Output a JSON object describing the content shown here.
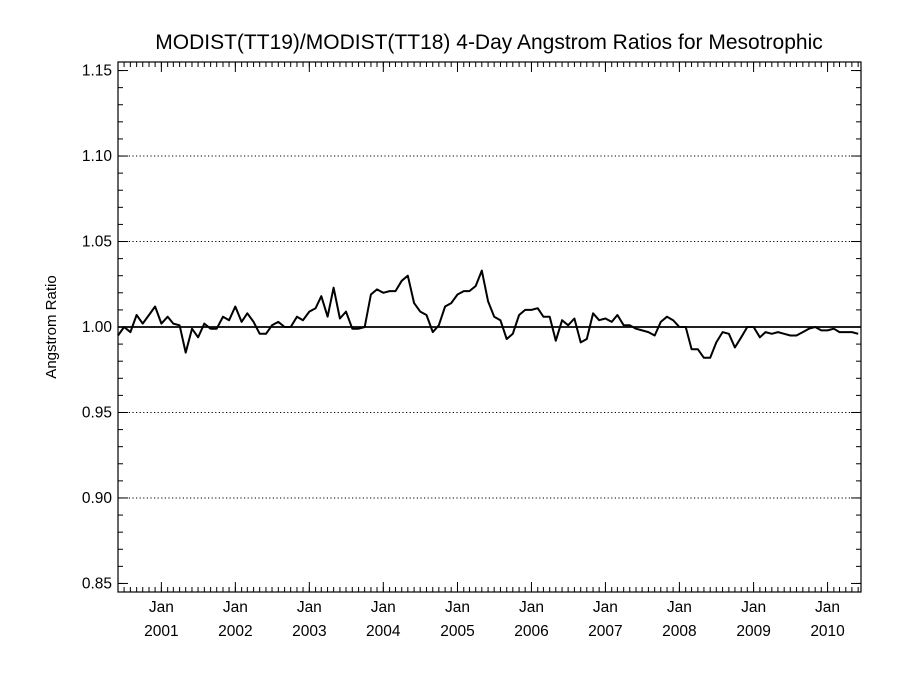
{
  "chart_data": {
    "type": "line",
    "title": "MODIST(TT19)/MODIST(TT18) 4-Day Angstrom Ratios for Mesotrophic",
    "xlabel": "",
    "ylabel": "Angstrom Ratio",
    "xlim": [
      "2000-06-01",
      "2010-06-15"
    ],
    "ylim": [
      0.845,
      1.155
    ],
    "y_ticks": [
      "0.85",
      "0.90",
      "0.95",
      "1.00",
      "1.05",
      "1.10",
      "1.15"
    ],
    "x_ticks": [
      {
        "month": "Jan",
        "year": "2001"
      },
      {
        "month": "Jan",
        "year": "2002"
      },
      {
        "month": "Jan",
        "year": "2003"
      },
      {
        "month": "Jan",
        "year": "2004"
      },
      {
        "month": "Jan",
        "year": "2005"
      },
      {
        "month": "Jan",
        "year": "2006"
      },
      {
        "month": "Jan",
        "year": "2007"
      },
      {
        "month": "Jan",
        "year": "2008"
      },
      {
        "month": "Jan",
        "year": "2009"
      },
      {
        "month": "Jan",
        "year": "2010"
      }
    ],
    "grid": "dotted horizontal at labelled y ticks",
    "reference_line": 1.0,
    "series": [
      {
        "color": "#000000",
        "x": [
          "2000-06-01",
          "2000-07-01",
          "2000-08-01",
          "2000-09-01",
          "2000-10-01",
          "2000-11-01",
          "2000-12-01",
          "2001-01-01",
          "2001-02-01",
          "2001-03-01",
          "2001-04-01",
          "2001-05-01",
          "2001-06-01",
          "2001-07-01",
          "2001-08-01",
          "2001-09-01",
          "2001-10-01",
          "2001-11-01",
          "2001-12-01",
          "2002-01-01",
          "2002-02-01",
          "2002-03-01",
          "2002-04-01",
          "2002-05-01",
          "2002-06-01",
          "2002-07-01",
          "2002-08-01",
          "2002-09-01",
          "2002-10-01",
          "2002-11-01",
          "2002-12-01",
          "2003-01-01",
          "2003-02-01",
          "2003-03-01",
          "2003-04-01",
          "2003-05-01",
          "2003-06-01",
          "2003-07-01",
          "2003-08-01",
          "2003-09-01",
          "2003-10-01",
          "2003-11-01",
          "2003-12-01",
          "2004-01-01",
          "2004-02-01",
          "2004-03-01",
          "2004-04-01",
          "2004-05-01",
          "2004-06-01",
          "2004-07-01",
          "2004-08-01",
          "2004-09-01",
          "2004-10-01",
          "2004-11-01",
          "2004-12-01",
          "2005-01-01",
          "2005-02-01",
          "2005-03-01",
          "2005-04-01",
          "2005-05-01",
          "2005-06-01",
          "2005-07-01",
          "2005-08-01",
          "2005-09-01",
          "2005-10-01",
          "2005-11-01",
          "2005-12-01",
          "2006-01-01",
          "2006-02-01",
          "2006-03-01",
          "2006-04-01",
          "2006-05-01",
          "2006-06-01",
          "2006-07-01",
          "2006-08-01",
          "2006-09-01",
          "2006-10-01",
          "2006-11-01",
          "2006-12-01",
          "2007-01-01",
          "2007-02-01",
          "2007-03-01",
          "2007-04-01",
          "2007-05-01",
          "2007-06-01",
          "2007-07-01",
          "2007-08-01",
          "2007-09-01",
          "2007-10-01",
          "2007-11-01",
          "2007-12-01",
          "2008-01-01",
          "2008-02-01",
          "2008-03-01",
          "2008-04-01",
          "2008-05-01",
          "2008-06-01",
          "2008-07-01",
          "2008-08-01",
          "2008-09-01",
          "2008-10-01",
          "2008-11-01",
          "2008-12-01",
          "2009-01-01",
          "2009-02-01",
          "2009-03-01",
          "2009-04-01",
          "2009-05-01",
          "2009-06-01",
          "2009-07-01",
          "2009-08-01",
          "2009-09-01",
          "2009-10-01",
          "2009-11-01",
          "2009-12-01",
          "2010-01-01",
          "2010-02-01",
          "2010-03-01",
          "2010-04-01",
          "2010-05-01",
          "2010-06-01"
        ],
        "values": [
          0.995,
          1.0,
          0.997,
          1.007,
          1.002,
          1.007,
          1.012,
          1.002,
          1.006,
          1.002,
          1.001,
          0.985,
          0.999,
          0.994,
          1.002,
          0.999,
          0.999,
          1.006,
          1.004,
          1.012,
          1.003,
          1.008,
          1.003,
          0.996,
          0.996,
          1.001,
          1.003,
          1.0,
          1.0,
          1.006,
          1.004,
          1.009,
          1.011,
          1.018,
          1.006,
          1.023,
          1.005,
          1.009,
          0.999,
          0.999,
          1.0,
          1.019,
          1.022,
          1.02,
          1.021,
          1.021,
          1.027,
          1.03,
          1.014,
          1.009,
          1.007,
          0.997,
          1.001,
          1.012,
          1.014,
          1.019,
          1.021,
          1.021,
          1.024,
          1.033,
          1.015,
          1.006,
          1.004,
          0.993,
          0.996,
          1.007,
          1.01,
          1.01,
          1.011,
          1.006,
          1.006,
          0.992,
          1.004,
          1.001,
          1.005,
          0.991,
          0.993,
          1.008,
          1.004,
          1.005,
          1.003,
          1.007,
          1.001,
          1.001,
          0.999,
          0.998,
          0.997,
          0.995,
          1.003,
          1.006,
          1.004,
          1.0,
          1.0,
          0.987,
          0.987,
          0.982,
          0.982,
          0.991,
          0.997,
          0.996,
          0.988,
          0.994,
          1.0,
          1.0,
          0.994,
          0.997,
          0.996,
          0.997,
          0.996,
          0.995,
          0.995,
          0.997,
          0.999,
          1.0,
          0.998,
          0.998,
          0.999,
          0.997,
          0.997,
          0.997,
          0.996
        ]
      }
    ]
  }
}
